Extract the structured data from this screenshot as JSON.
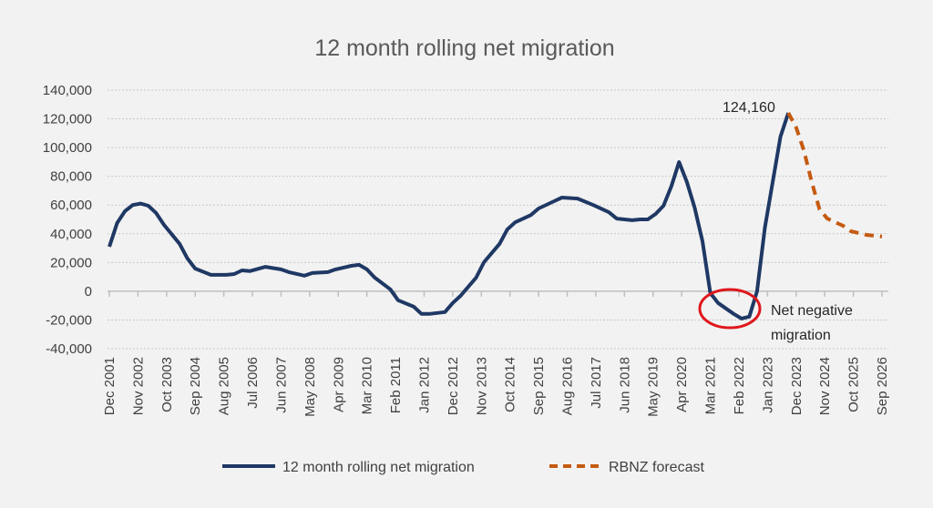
{
  "chart_data": {
    "type": "line",
    "title": "12 month rolling net migration",
    "xlabel": "",
    "ylabel": "",
    "ylim": [
      -40000,
      140000
    ],
    "yticks": [
      -40000,
      -20000,
      0,
      20000,
      40000,
      60000,
      80000,
      100000,
      120000,
      140000
    ],
    "ytick_labels": [
      "-40,000",
      "-20,000",
      "0",
      "20,000",
      "40,000",
      "60,000",
      "80,000",
      "100,000",
      "120,000",
      "140,000"
    ],
    "xtick_labels": [
      "Dec 2001",
      "Nov 2002",
      "Oct 2003",
      "Sep 2004",
      "Aug 2005",
      "Jul 2006",
      "Jun 2007",
      "May 2008",
      "Apr 2009",
      "Mar 2010",
      "Feb 2011",
      "Jan 2012",
      "Dec 2012",
      "Nov 2013",
      "Oct 2014",
      "Sep 2015",
      "Aug 2016",
      "Jul 2017",
      "Jun 2018",
      "May 2019",
      "Apr 2020",
      "Mar 2021",
      "Feb 2022",
      "Jan 2023",
      "Dec 2023",
      "Nov 2024",
      "Oct 2025",
      "Sep 2026"
    ],
    "grid": "horizontal dotted",
    "legend": "bottom",
    "series": [
      {
        "name": "12 month rolling net migration",
        "color": "#1f3864",
        "style": "solid",
        "x": [
          "2001-12",
          "2002-03",
          "2002-06",
          "2002-09",
          "2002-12",
          "2003-03",
          "2003-06",
          "2003-09",
          "2004-03",
          "2004-06",
          "2004-09",
          "2005-03",
          "2005-09",
          "2005-12",
          "2006-03",
          "2006-06",
          "2006-12",
          "2007-06",
          "2007-09",
          "2008-03",
          "2008-06",
          "2008-12",
          "2009-03",
          "2009-09",
          "2009-12",
          "2010-03",
          "2010-06",
          "2010-12",
          "2011-03",
          "2011-09",
          "2011-12",
          "2012-03",
          "2012-09",
          "2012-12",
          "2013-03",
          "2013-09",
          "2013-12",
          "2014-06",
          "2014-09",
          "2014-12",
          "2015-06",
          "2015-09",
          "2016-03",
          "2016-06",
          "2016-12",
          "2017-06",
          "2017-12",
          "2018-03",
          "2018-09",
          "2018-12",
          "2019-03",
          "2019-06",
          "2019-09",
          "2019-12",
          "2020-03",
          "2020-06",
          "2020-09",
          "2020-12",
          "2021-03",
          "2021-06",
          "2021-12",
          "2022-03",
          "2022-06",
          "2022-09",
          "2022-12",
          "2023-06",
          "2023-09"
        ],
        "y": [
          31000,
          47500,
          55700,
          60000,
          61000,
          59500,
          54400,
          46200,
          33000,
          22800,
          15800,
          11400,
          11400,
          12000,
          14500,
          14000,
          17000,
          15200,
          13300,
          10800,
          12700,
          13300,
          15200,
          17700,
          18400,
          15200,
          9500,
          1300,
          -6300,
          -10800,
          -15800,
          -15800,
          -14500,
          -8200,
          -3200,
          9500,
          20200,
          33000,
          43000,
          48000,
          53000,
          57600,
          62700,
          65200,
          64500,
          60000,
          55000,
          50600,
          49400,
          50000,
          50000,
          53800,
          59500,
          72800,
          89900,
          76000,
          58200,
          34800,
          -1300,
          -8200,
          -15800,
          -19000,
          -17700,
          0,
          44300,
          107600,
          124160
        ]
      },
      {
        "name": "RBNZ forecast",
        "color": "#c55a11",
        "style": "dashed",
        "x": [
          "2023-09",
          "2023-12",
          "2024-03",
          "2024-06",
          "2024-09",
          "2024-12",
          "2025-06",
          "2025-09",
          "2026-03",
          "2026-09"
        ],
        "y": [
          124160,
          114000,
          98000,
          76000,
          57000,
          50600,
          45600,
          41800,
          39200,
          38000
        ]
      }
    ],
    "annotations": {
      "peak_label": "124,160",
      "negative_line1": "Net negative",
      "negative_line2": "migration",
      "circle_color": "#e0161b"
    }
  }
}
